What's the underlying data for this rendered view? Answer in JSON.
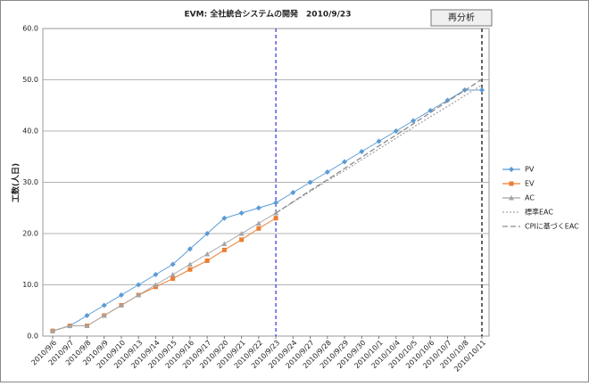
{
  "chart_data": {
    "type": "line",
    "title": "EVM: 全社統合システムの開発　2010/9/23",
    "button": "再分析",
    "ylabel": "工数(人日)",
    "categories": [
      "2010/9/6",
      "2010/9/7",
      "2010/9/8",
      "2010/9/9",
      "2010/9/10",
      "2010/9/13",
      "2010/9/14",
      "2010/9/15",
      "2010/9/16",
      "2010/9/17",
      "2010/9/20",
      "2010/9/21",
      "2010/9/22",
      "2010/9/23",
      "2010/9/24",
      "2010/9/27",
      "2010/9/28",
      "2010/9/29",
      "2010/9/30",
      "2010/10/1",
      "2010/10/4",
      "2010/10/5",
      "2010/10/6",
      "2010/10/7",
      "2010/10/8",
      "2010/10/11"
    ],
    "series": [
      {
        "name": "PV",
        "color": "#5b9bd5",
        "marker": "diamond",
        "dash": "solid",
        "values": [
          1,
          2,
          4,
          6,
          8,
          10,
          12,
          14,
          17,
          20,
          23,
          24,
          25,
          26,
          28,
          30,
          32,
          34,
          36,
          38,
          40,
          42,
          44,
          46,
          48,
          48
        ]
      },
      {
        "name": "EV",
        "color": "#ed7d31",
        "marker": "square",
        "dash": "solid",
        "values": [
          1,
          2,
          2,
          4,
          6,
          8,
          9.6,
          11.2,
          13,
          14.7,
          16.8,
          18.8,
          21,
          23,
          null,
          null,
          null,
          null,
          null,
          null,
          null,
          null,
          null,
          null,
          null,
          null
        ]
      },
      {
        "name": "AC",
        "color": "#a5a5a5",
        "marker": "triangle",
        "dash": "solid",
        "values": [
          1,
          2,
          2,
          4,
          6,
          8,
          10,
          12,
          14,
          16,
          18,
          20,
          22,
          24,
          null,
          null,
          null,
          null,
          null,
          null,
          null,
          null,
          null,
          null,
          null,
          null
        ]
      },
      {
        "name": "標準EAC",
        "color": "#a5a5a5",
        "marker": "none",
        "dash": "dotted",
        "values": [
          null,
          null,
          null,
          null,
          null,
          null,
          null,
          null,
          null,
          null,
          null,
          null,
          null,
          24,
          26.1,
          28.2,
          30.3,
          32.3,
          34.4,
          36.5,
          38.6,
          40.7,
          42.8,
          44.8,
          46.9,
          49
        ]
      },
      {
        "name": "CPIに基づくEAC",
        "color": "#8c8c8c",
        "marker": "none",
        "dash": "dashed",
        "values": [
          null,
          null,
          null,
          null,
          null,
          null,
          null,
          null,
          null,
          null,
          null,
          null,
          null,
          24,
          26.2,
          28.4,
          30.5,
          32.7,
          34.9,
          37.1,
          39.2,
          41.4,
          43.6,
          45.8,
          47.9,
          50.1
        ]
      }
    ],
    "vlines": [
      {
        "x": "2010/9/23",
        "color": "#3333dd"
      },
      {
        "x": "2010/10/11",
        "color": "#000000"
      }
    ],
    "ylim": [
      0,
      60
    ],
    "yticks": [
      {
        "value": 0,
        "label": "0.0"
      },
      {
        "value": 10,
        "label": "10.0"
      },
      {
        "value": 20,
        "label": "20.0"
      },
      {
        "value": 30,
        "label": "30.0"
      },
      {
        "value": 40,
        "label": "40.0"
      },
      {
        "value": 50,
        "label": "50.0"
      },
      {
        "value": 60,
        "label": "60.0"
      }
    ],
    "grid": true,
    "legend": "right"
  }
}
